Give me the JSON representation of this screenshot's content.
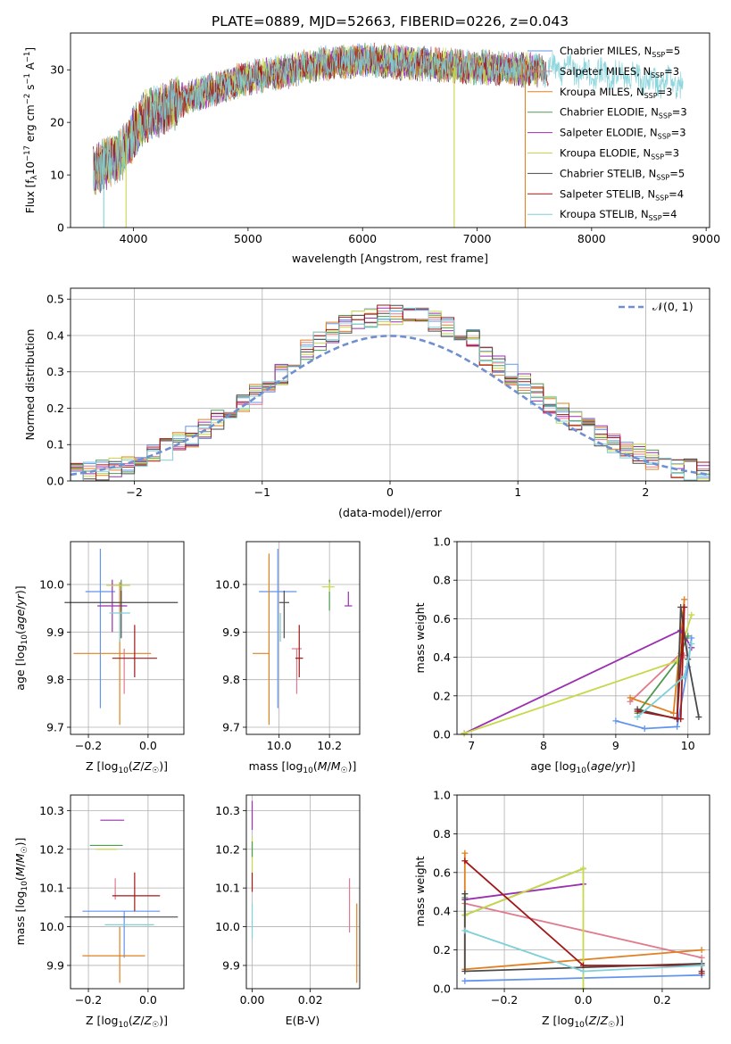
{
  "figure_title": "PLATE=0889, MJD=52663, FIBERID=0226, z=0.043",
  "model_colors": [
    "#6495ed",
    "#e07b8f",
    "#e08020",
    "#4f9a50",
    "#9a2fb0",
    "#c8d84a",
    "#4a4a4a",
    "#a01818",
    "#7fd0d8"
  ],
  "chart_data": [
    {
      "id": "spectrum",
      "type": "line",
      "xlabel": "wavelength [Angstrom, rest frame]",
      "ylabel": "Flux [f_λ 10^-17 erg cm^-2 s^-1 A^-1]",
      "xlim": [
        3450,
        9030
      ],
      "ylim": [
        0,
        37
      ],
      "xticks": [
        4000,
        5000,
        6000,
        7000,
        8000,
        9000
      ],
      "yticks": [
        0,
        10,
        20,
        30
      ],
      "legend_position": "top-right",
      "legend": [
        {
          "label": "Chabrier MILES, ",
          "n": "5",
          "color": "#6495ed"
        },
        {
          "label": "Salpeter MILES, ",
          "n": "3",
          "color": "#e07b8f"
        },
        {
          "label": "Kroupa MILES, ",
          "n": "3",
          "color": "#e08020"
        },
        {
          "label": "Chabrier ELODIE, ",
          "n": "3",
          "color": "#4f9a50"
        },
        {
          "label": "Salpeter ELODIE, ",
          "n": "3",
          "color": "#9a2fb0"
        },
        {
          "label": "Kroupa ELODIE, ",
          "n": "3",
          "color": "#c8d84a"
        },
        {
          "label": "Chabrier STELIB, ",
          "n": "5",
          "color": "#4a4a4a"
        },
        {
          "label": "Salpeter STELIB, ",
          "n": "4",
          "color": "#a01818"
        },
        {
          "label": "Kroupa STELIB, ",
          "n": "4",
          "color": "#7fd0d8"
        }
      ],
      "continuum": {
        "x": [
          3650,
          3750,
          3900,
          4000,
          4100,
          4300,
          4500,
          4800,
          5000,
          5300,
          5600,
          6000,
          6300,
          6600,
          7000,
          7400,
          7800,
          8200,
          8500,
          8800
        ],
        "y": [
          11,
          12,
          14,
          18,
          21,
          23,
          25,
          27,
          28.5,
          29.5,
          31,
          32,
          31.5,
          31,
          30.5,
          30,
          30,
          29,
          28,
          27
        ]
      },
      "dips": [
        {
          "x": 3740,
          "y": 0,
          "color": "#7fd0d8"
        },
        {
          "x": 3935,
          "y": 0,
          "color": "#c8d84a"
        },
        {
          "x": 6800,
          "y": 0,
          "color": "#c8d84a"
        },
        {
          "x": 7420,
          "y": 0,
          "color": "#e08020"
        }
      ]
    },
    {
      "id": "residuals",
      "type": "histogram",
      "xlabel": "(data-model)/error",
      "ylabel": "Normed distribution",
      "xlim": [
        -2.5,
        2.5
      ],
      "ylim": [
        0,
        0.53
      ],
      "xticks": [
        -2,
        -1,
        0,
        1,
        2
      ],
      "yticks": [
        0.0,
        0.1,
        0.2,
        0.3,
        0.4,
        0.5
      ],
      "bin_width": 0.1,
      "bin_start": -2.5,
      "reference_curve": {
        "label": "𝒩(0, 1)",
        "color": "#6f8fd0",
        "style": "dashed",
        "legend_position": "top-right"
      }
    },
    {
      "id": "age-vs-Z",
      "type": "errorbar",
      "xlabel": "Z [log10(Z/Z☉)]",
      "ylabel": "age [log10(age/yr)]",
      "xlim": [
        -0.26,
        0.12
      ],
      "ylim": [
        9.685,
        10.09
      ],
      "xticks": [
        -0.2,
        0.0
      ],
      "yticks": [
        9.7,
        9.8,
        9.9,
        10.0
      ],
      "points": [
        {
          "x": -0.16,
          "xerr": [
            0.05,
            0.05
          ],
          "y": 9.985,
          "yerr": [
            0.245,
            0.09
          ],
          "color": "#6495ed"
        },
        {
          "x": -0.08,
          "xerr": [
            0.0,
            0.0
          ],
          "y": 9.865,
          "yerr": [
            0.095,
            0.0
          ],
          "color": "#e07b8f"
        },
        {
          "x": -0.095,
          "xerr": [
            0.155,
            0.105
          ],
          "y": 9.855,
          "yerr": [
            0.15,
            0.15
          ],
          "color": "#e08020"
        },
        {
          "x": -0.09,
          "xerr": [
            0.0,
            0.0
          ],
          "y": 9.995,
          "yerr": [
            0.05,
            0.015
          ],
          "color": "#4f9a50"
        },
        {
          "x": -0.12,
          "xerr": [
            0.05,
            0.05
          ],
          "y": 9.955,
          "yerr": [
            0.055,
            0.055
          ],
          "color": "#9a2fb0"
        },
        {
          "x": -0.1,
          "xerr": [
            0.04,
            0.04
          ],
          "y": 9.998,
          "yerr": [
            0.0,
            0.0
          ],
          "color": "#c8d84a"
        },
        {
          "x": -0.09,
          "xerr": [
            0.19,
            0.19
          ],
          "y": 9.962,
          "yerr": [
            0.075,
            0.025
          ],
          "color": "#4a4a4a"
        },
        {
          "x": -0.045,
          "xerr": [
            0.075,
            0.075
          ],
          "y": 9.845,
          "yerr": [
            0.04,
            0.07
          ],
          "color": "#a01818"
        },
        {
          "x": -0.095,
          "xerr": [
            0.035,
            0.035
          ],
          "y": 9.94,
          "yerr": [
            0.06,
            0.0
          ],
          "color": "#7fd0d8"
        }
      ]
    },
    {
      "id": "age-vs-mass",
      "type": "errorbar",
      "xlabel": "mass [log10(M/M☉)]",
      "ylabel": "",
      "xlim": [
        9.87,
        10.32
      ],
      "ylim": [
        9.685,
        10.09
      ],
      "xticks": [
        10.0,
        10.2
      ],
      "yticks": [
        9.7,
        9.8,
        9.9,
        10.0
      ],
      "points": [
        {
          "x": 9.995,
          "xerr": [
            0.075,
            0.075
          ],
          "y": 9.985,
          "yerr": [
            0.245,
            0.09
          ],
          "color": "#6495ed"
        },
        {
          "x": 10.07,
          "xerr": [
            0.02,
            0.02
          ],
          "y": 9.865,
          "yerr": [
            0.095,
            0.0
          ],
          "color": "#e07b8f"
        },
        {
          "x": 9.96,
          "xerr": [
            0.065,
            0.0
          ],
          "y": 9.855,
          "yerr": [
            0.15,
            0.21
          ],
          "color": "#e08020"
        },
        {
          "x": 10.2,
          "xerr": [
            0.0,
            0.0
          ],
          "y": 9.995,
          "yerr": [
            0.05,
            0.015
          ],
          "color": "#4f9a50"
        },
        {
          "x": 10.275,
          "xerr": [
            0.015,
            0.015
          ],
          "y": 9.955,
          "yerr": [
            0.0,
            0.03
          ],
          "color": "#9a2fb0"
        },
        {
          "x": 10.2,
          "xerr": [
            0.03,
            0.02
          ],
          "y": 9.995,
          "yerr": [
            0.01,
            0.01
          ],
          "color": "#c8d84a"
        },
        {
          "x": 10.02,
          "xerr": [
            0.02,
            0.02
          ],
          "y": 9.962,
          "yerr": [
            0.075,
            0.025
          ],
          "color": "#4a4a4a"
        },
        {
          "x": 10.08,
          "xerr": [
            0.015,
            0.015
          ],
          "y": 9.845,
          "yerr": [
            0.04,
            0.07
          ],
          "color": "#a01818"
        },
        {
          "x": 10.005,
          "xerr": [
            0.0,
            0.0
          ],
          "y": 9.94,
          "yerr": [
            0.06,
            0.0
          ],
          "color": "#7fd0d8"
        }
      ]
    },
    {
      "id": "massweight-vs-age",
      "type": "line",
      "xlabel": "age [log10(age/yr)]",
      "ylabel": "mass weight",
      "xlim": [
        6.8,
        10.3
      ],
      "ylim": [
        0,
        1
      ],
      "xticks": [
        7,
        8,
        9,
        10
      ],
      "yticks": [
        0.0,
        0.2,
        0.4,
        0.6,
        0.8,
        1.0
      ],
      "series": [
        {
          "color": "#6495ed",
          "x": [
            9.0,
            9.4,
            9.85,
            10.0,
            10.05
          ],
          "y": [
            0.07,
            0.03,
            0.04,
            0.35,
            0.5
          ]
        },
        {
          "color": "#e07b8f",
          "x": [
            9.2,
            9.9,
            9.95
          ],
          "y": [
            0.17,
            0.42,
            0.41
          ]
        },
        {
          "color": "#e08020",
          "x": [
            9.2,
            9.8,
            9.95
          ],
          "y": [
            0.19,
            0.11,
            0.7
          ]
        },
        {
          "color": "#4f9a50",
          "x": [
            9.3,
            9.85,
            10.0
          ],
          "y": [
            0.11,
            0.38,
            0.51
          ]
        },
        {
          "color": "#9a2fb0",
          "x": [
            6.9,
            9.9,
            10.05
          ],
          "y": [
            0.005,
            0.54,
            0.45
          ]
        },
        {
          "color": "#c8d84a",
          "x": [
            6.9,
            9.85,
            10.05
          ],
          "y": [
            0.005,
            0.38,
            0.62
          ]
        },
        {
          "color": "#4a4a4a",
          "x": [
            9.3,
            9.85,
            9.9,
            10.0,
            10.15
          ],
          "y": [
            0.13,
            0.08,
            0.66,
            0.39,
            0.09
          ]
        },
        {
          "color": "#a01818",
          "x": [
            9.3,
            9.9,
            9.95,
            9.85
          ],
          "y": [
            0.12,
            0.08,
            0.66,
            0.08
          ]
        },
        {
          "color": "#7fd0d8",
          "x": [
            9.3,
            9.95,
            10.05
          ],
          "y": [
            0.09,
            0.3,
            0.47
          ]
        }
      ]
    },
    {
      "id": "mass-vs-Z",
      "type": "errorbar",
      "xlabel": "Z [log10(Z/Z☉)]",
      "ylabel": "mass [log10(M/M☉)]",
      "xlim": [
        -0.26,
        0.12
      ],
      "ylim": [
        9.84,
        10.34
      ],
      "xticks": [
        -0.2,
        0.0
      ],
      "yticks": [
        9.9,
        10.0,
        10.1,
        10.2,
        10.3
      ],
      "points": [
        {
          "x": -0.08,
          "xerr": [
            0.14,
            0.12
          ],
          "y": 10.04,
          "yerr": [
            0.12,
            0.0
          ],
          "color": "#6495ed"
        },
        {
          "x": -0.11,
          "xerr": [
            0.0,
            0.0
          ],
          "y": 10.07,
          "yerr": [
            0.0,
            0.055
          ],
          "color": "#e07b8f"
        },
        {
          "x": -0.095,
          "xerr": [
            0.125,
            0.085
          ],
          "y": 9.925,
          "yerr": [
            0.07,
            0.075
          ],
          "color": "#e08020"
        },
        {
          "x": -0.14,
          "xerr": [
            0.055,
            0.055
          ],
          "y": 10.21,
          "yerr": [
            0.0,
            0.0
          ],
          "color": "#4f9a50"
        },
        {
          "x": -0.12,
          "xerr": [
            0.04,
            0.04
          ],
          "y": 10.275,
          "yerr": [
            0.0,
            0.0
          ],
          "color": "#9a2fb0"
        },
        {
          "x": -0.14,
          "xerr": [
            0.035,
            0.035
          ],
          "y": 10.2,
          "yerr": [
            0.0,
            0.0
          ],
          "color": "#c8d84a"
        },
        {
          "x": -0.09,
          "xerr": [
            0.19,
            0.19
          ],
          "y": 10.025,
          "yerr": [
            0.0,
            0.0
          ],
          "color": "#4a4a4a"
        },
        {
          "x": -0.045,
          "xerr": [
            0.075,
            0.085
          ],
          "y": 10.08,
          "yerr": [
            0.04,
            0.06
          ],
          "color": "#a01818"
        },
        {
          "x": -0.1,
          "xerr": [
            0.045,
            0.12
          ],
          "y": 10.005,
          "yerr": [
            0.0,
            0.0
          ],
          "color": "#7fd0d8"
        }
      ]
    },
    {
      "id": "mass-vs-EBV",
      "type": "errorbar",
      "xlabel": "E(B-V)",
      "ylabel": "",
      "xlim": [
        -0.002,
        0.037
      ],
      "ylim": [
        9.84,
        10.34
      ],
      "xticks": [
        0.0,
        0.02
      ],
      "yticks": [
        9.9,
        10.0,
        10.1,
        10.2,
        10.3
      ],
      "points": [
        {
          "x": 0.0,
          "xerr": [
            0.0,
            0.0
          ],
          "y": 10.12,
          "yerr": [
            0.03,
            0.02
          ],
          "color": "#a01818"
        },
        {
          "x": 0.0,
          "xerr": [
            0.0,
            0.0
          ],
          "y": 10.28,
          "yerr": [
            0.03,
            0.045
          ],
          "color": "#9a2fb0"
        },
        {
          "x": 0.0,
          "xerr": [
            0.0,
            0.0
          ],
          "y": 10.2,
          "yerr": [
            0.06,
            0.03
          ],
          "color": "#c8d84a"
        },
        {
          "x": 0.0,
          "xerr": [
            0.0,
            0.0
          ],
          "y": 10.01,
          "yerr": [
            0.04,
            0.05
          ],
          "color": "#7fd0d8"
        },
        {
          "x": 0.0,
          "xerr": [
            0.0,
            0.0
          ],
          "y": 10.2,
          "yerr": [
            0.02,
            0.02
          ],
          "color": "#4f9a50"
        },
        {
          "x": 0.0335,
          "xerr": [
            0.0,
            0.0
          ],
          "y": 10.055,
          "yerr": [
            0.07,
            0.07
          ],
          "color": "#e07b8f"
        },
        {
          "x": 0.036,
          "xerr": [
            0.0,
            0.0
          ],
          "y": 9.96,
          "yerr": [
            0.105,
            0.1
          ],
          "color": "#e08020"
        }
      ]
    },
    {
      "id": "massweight-vs-Z",
      "type": "line",
      "xlabel": "Z [log10(Z/Z☉)]",
      "ylabel": "mass weight",
      "xlim": [
        -0.32,
        0.32
      ],
      "ylim": [
        0,
        1
      ],
      "xticks": [
        -0.2,
        0.0,
        0.2
      ],
      "yticks": [
        0.0,
        0.2,
        0.4,
        0.6,
        0.8,
        1.0
      ],
      "series": [
        {
          "color": "#6495ed",
          "x": [
            -0.3,
            0.3
          ],
          "y": [
            0.04,
            0.07
          ]
        },
        {
          "color": "#e07b8f",
          "x": [
            -0.3,
            0.3
          ],
          "y": [
            0.44,
            0.16
          ]
        },
        {
          "color": "#e08020",
          "x": [
            -0.3,
            -0.3,
            0.0,
            0.3
          ],
          "y": [
            0.7,
            0.1,
            0.15,
            0.2
          ]
        },
        {
          "color": "#4f9a50",
          "x": [
            -0.3,
            -0.3,
            0.0
          ],
          "y": [
            0.47,
            0.38,
            0.62
          ]
        },
        {
          "color": "#9a2fb0",
          "x": [
            -0.3,
            0.0
          ],
          "y": [
            0.46,
            0.54
          ]
        },
        {
          "color": "#c8d84a",
          "x": [
            -0.3,
            0.0,
            0.0
          ],
          "y": [
            0.38,
            0.62,
            0.0
          ]
        },
        {
          "color": "#4a4a4a",
          "x": [
            -0.3,
            -0.3,
            0.3,
            0.3
          ],
          "y": [
            0.49,
            0.09,
            0.13,
            0.09
          ]
        },
        {
          "color": "#a01818",
          "x": [
            -0.3,
            0.0,
            0.3,
            0.3
          ],
          "y": [
            0.66,
            0.12,
            0.12,
            0.08
          ]
        },
        {
          "color": "#7fd0d8",
          "x": [
            -0.3,
            0.0,
            0.3
          ],
          "y": [
            0.3,
            0.09,
            0.12
          ]
        }
      ]
    }
  ]
}
